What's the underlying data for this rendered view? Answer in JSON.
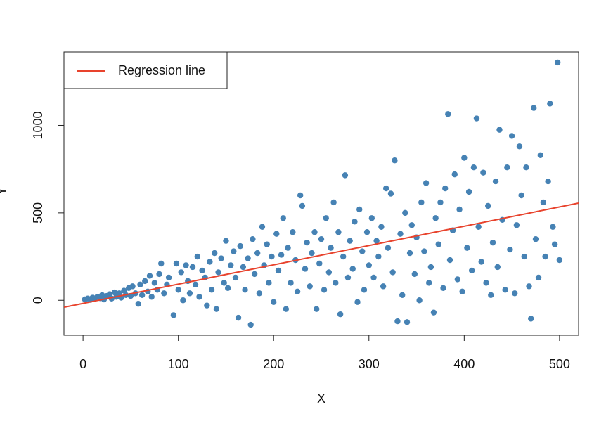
{
  "chart_data": {
    "type": "scatter",
    "xlabel": "X",
    "ylabel": "Y",
    "xlim": [
      -20,
      520
    ],
    "ylim": [
      -200,
      1420
    ],
    "xticks": [
      0,
      100,
      200,
      300,
      400,
      500
    ],
    "yticks": [
      0,
      500,
      1000
    ],
    "color": "#4682b4",
    "legend": "top-left",
    "x": [
      2,
      5,
      8,
      10,
      12,
      15,
      18,
      20,
      22,
      25,
      28,
      30,
      33,
      35,
      38,
      40,
      43,
      45,
      48,
      50,
      52,
      55,
      58,
      60,
      62,
      65,
      68,
      70,
      72,
      75,
      78,
      80,
      82,
      85,
      88,
      90,
      95,
      98,
      100,
      103,
      105,
      108,
      110,
      112,
      115,
      118,
      120,
      122,
      125,
      128,
      130,
      133,
      135,
      138,
      140,
      142,
      145,
      148,
      150,
      152,
      155,
      158,
      160,
      163,
      165,
      168,
      170,
      173,
      176,
      178,
      180,
      183,
      185,
      188,
      190,
      193,
      195,
      198,
      200,
      203,
      205,
      208,
      210,
      213,
      215,
      218,
      220,
      223,
      225,
      228,
      230,
      233,
      235,
      238,
      240,
      243,
      245,
      248,
      250,
      253,
      255,
      258,
      260,
      263,
      265,
      268,
      270,
      273,
      275,
      278,
      280,
      283,
      285,
      288,
      290,
      293,
      295,
      298,
      300,
      303,
      305,
      308,
      310,
      313,
      315,
      318,
      320,
      323,
      325,
      327,
      330,
      333,
      335,
      338,
      340,
      343,
      345,
      348,
      350,
      353,
      355,
      358,
      360,
      363,
      365,
      368,
      370,
      373,
      375,
      378,
      380,
      383,
      385,
      388,
      390,
      393,
      395,
      398,
      400,
      403,
      405,
      408,
      410,
      413,
      415,
      418,
      420,
      423,
      425,
      428,
      430,
      433,
      435,
      437,
      440,
      443,
      445,
      448,
      450,
      453,
      455,
      458,
      460,
      463,
      465,
      468,
      470,
      473,
      475,
      478,
      480,
      483,
      485,
      488,
      490,
      493,
      495,
      498,
      500
    ],
    "y": [
      5,
      10,
      3,
      15,
      8,
      20,
      12,
      30,
      5,
      25,
      35,
      10,
      45,
      20,
      40,
      15,
      55,
      30,
      70,
      25,
      80,
      40,
      -20,
      90,
      30,
      110,
      50,
      140,
      20,
      100,
      60,
      150,
      210,
      40,
      90,
      130,
      -85,
      210,
      60,
      160,
      0,
      200,
      110,
      40,
      190,
      90,
      250,
      20,
      170,
      130,
      -30,
      220,
      60,
      270,
      -50,
      160,
      240,
      100,
      340,
      70,
      200,
      280,
      130,
      -100,
      310,
      190,
      60,
      240,
      -140,
      350,
      150,
      270,
      40,
      420,
      200,
      320,
      100,
      250,
      -10,
      380,
      170,
      260,
      470,
      -50,
      300,
      100,
      390,
      230,
      50,
      600,
      540,
      180,
      330,
      80,
      270,
      390,
      -50,
      210,
      350,
      60,
      470,
      160,
      300,
      560,
      100,
      390,
      -80,
      250,
      715,
      130,
      340,
      180,
      450,
      -10,
      520,
      280,
      60,
      390,
      200,
      470,
      130,
      340,
      250,
      420,
      80,
      640,
      300,
      610,
      160,
      800,
      -120,
      380,
      30,
      500,
      -125,
      270,
      430,
      150,
      360,
      0,
      560,
      280,
      670,
      100,
      190,
      -70,
      470,
      320,
      560,
      70,
      640,
      1065,
      230,
      400,
      720,
      120,
      520,
      50,
      815,
      300,
      620,
      170,
      760,
      1040,
      420,
      220,
      730,
      100,
      540,
      30,
      330,
      680,
      190,
      975,
      460,
      60,
      760,
      290,
      940,
      40,
      430,
      880,
      600,
      250,
      760,
      80,
      -105,
      1100,
      350,
      130,
      830,
      560,
      250,
      680,
      1125,
      420,
      320,
      1360,
      230
    ],
    "lines": [
      {
        "name": "Regression line",
        "color": "#e8432d",
        "x": [
          -20,
          520
        ],
        "y": [
          -40,
          556
        ]
      }
    ]
  }
}
